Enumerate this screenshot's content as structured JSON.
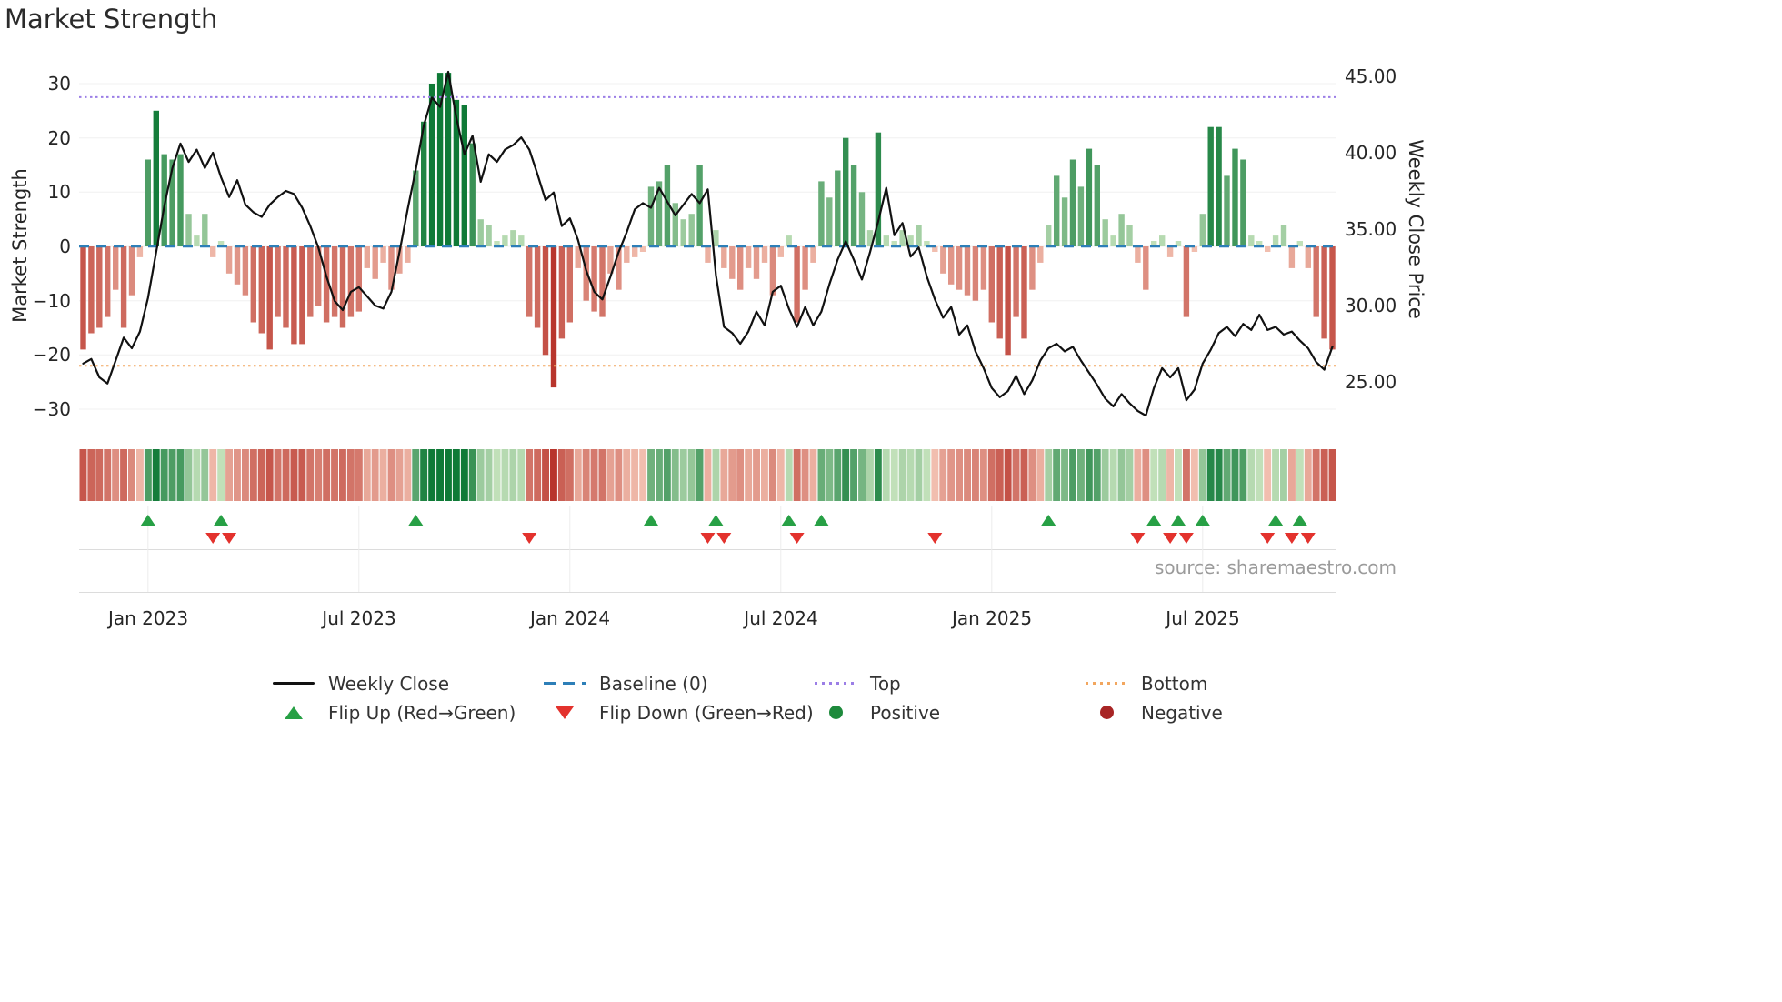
{
  "title": "Market Strength",
  "source": "source: sharemaestro.com",
  "axes": {
    "y_left": {
      "label": "Market Strength",
      "ticks": [
        "30",
        "20",
        "10",
        "0",
        "−10",
        "−20",
        "−30"
      ]
    },
    "y_right": {
      "label": "Weekly Close Price",
      "ticks": [
        "45.00",
        "40.00",
        "35.00",
        "30.00",
        "25.00"
      ]
    },
    "x": {
      "ticks": [
        "Jan 2023",
        "Jul 2023",
        "Jan 2024",
        "Jul 2024",
        "Jan 2025",
        "Jul 2025"
      ]
    }
  },
  "legend": {
    "weekly_close": "Weekly Close",
    "baseline": "Baseline (0)",
    "top": "Top",
    "bottom": "Bottom",
    "flip_up": "Flip Up (Red→Green)",
    "flip_down": "Flip Down (Green→Red)",
    "positive": "Positive",
    "negative": "Negative"
  },
  "colors": {
    "bar_pos_light": "#cfe8c3",
    "bar_pos_dark": "#0f7a37",
    "bar_neg_light": "#f6c9b9",
    "bar_neg_dark": "#b8352c",
    "line": "#111111",
    "baseline": "#2d7fb8",
    "top": "#9b7ee6",
    "bottom": "#f2a65e",
    "flip_up": "#27a045",
    "flip_down": "#e3322d",
    "positive": "#1e8a3c",
    "negative": "#a82525",
    "grid": "#f0f0f0",
    "panel_line": "#dcdcdc"
  },
  "chart_data": {
    "type": "bar",
    "title": "Market Strength",
    "xlabel": "",
    "ylabel_left": "Market Strength",
    "ylabel_right": "Weekly Close Price",
    "x_start_date": "2022-11-07",
    "x_step_days": 7,
    "n_weeks": 155,
    "x_tick_weeks": [
      8,
      34,
      60,
      86,
      112,
      138
    ],
    "x_tick_labels": [
      "Jan 2023",
      "Jul 2023",
      "Jan 2024",
      "Jul 2024",
      "Jan 2025",
      "Jul 2025"
    ],
    "ylim_left": [
      -33.4,
      33.7
    ],
    "ylim_right": [
      22.0,
      45.8
    ],
    "baseline": 0,
    "top_line": 27.5,
    "bottom_line": -22,
    "legend_position": "bottom",
    "grid": true,
    "series": [
      {
        "name": "Market Strength",
        "type": "bar",
        "axis": "left",
        "values": [
          -19,
          -16,
          -15,
          -13,
          -8,
          -15,
          -9,
          -2,
          16,
          25,
          17,
          16,
          17,
          6,
          2,
          6,
          -2,
          1,
          -5,
          -7,
          -9,
          -14,
          -16,
          -19,
          -13,
          -15,
          -18,
          -18,
          -13,
          -11,
          -14,
          -13,
          -15,
          -13,
          -12,
          -4,
          -6,
          -3,
          -8,
          -5,
          -3,
          14,
          23,
          30,
          32,
          32,
          27,
          26,
          19,
          5,
          4,
          1,
          2,
          3,
          2,
          -13,
          -15,
          -20,
          -26,
          -17,
          -14,
          -4,
          -10,
          -12,
          -13,
          -5,
          -8,
          -3,
          -2,
          -1,
          11,
          12,
          15,
          8,
          5,
          6,
          15,
          -3,
          3,
          -4,
          -6,
          -8,
          -4,
          -6,
          -3,
          -9,
          -2,
          2,
          -14,
          -8,
          -3,
          12,
          9,
          14,
          20,
          15,
          10,
          3,
          21,
          2,
          1,
          3,
          2,
          4,
          1,
          -1,
          -5,
          -7,
          -8,
          -9,
          -10,
          -8,
          -14,
          -17,
          -20,
          -13,
          -17,
          -8,
          -3,
          4,
          13,
          9,
          16,
          11,
          18,
          15,
          5,
          2,
          6,
          4,
          -3,
          -8,
          1,
          2,
          -2,
          1,
          -13,
          -1,
          6,
          22,
          22,
          13,
          18,
          16,
          2,
          1,
          -1,
          2,
          4,
          -4,
          1,
          -4,
          -13,
          -17,
          -19
        ]
      },
      {
        "name": "Weekly Close",
        "type": "line",
        "axis": "right",
        "values": [
          26.2,
          26.5,
          25.3,
          24.9,
          26.4,
          27.9,
          27.2,
          28.3,
          30.5,
          33.5,
          36.5,
          39.0,
          40.6,
          39.4,
          40.2,
          39.0,
          40.0,
          38.4,
          37.1,
          38.2,
          36.6,
          36.1,
          35.8,
          36.6,
          37.1,
          37.5,
          37.3,
          36.4,
          35.2,
          33.8,
          31.9,
          30.3,
          29.7,
          30.9,
          31.2,
          30.6,
          30.0,
          29.8,
          30.9,
          33.5,
          36.3,
          38.9,
          41.8,
          43.6,
          43.0,
          45.3,
          42.3,
          39.9,
          41.1,
          38.1,
          39.9,
          39.4,
          40.2,
          40.5,
          41.0,
          40.2,
          38.6,
          36.9,
          37.4,
          35.2,
          35.7,
          34.3,
          32.3,
          30.9,
          30.4,
          31.9,
          33.5,
          34.8,
          36.3,
          36.7,
          36.4,
          37.7,
          36.8,
          35.9,
          36.6,
          37.3,
          36.7,
          37.6,
          32.0,
          28.6,
          28.2,
          27.5,
          28.3,
          29.6,
          28.7,
          30.9,
          31.3,
          29.8,
          28.6,
          29.9,
          28.7,
          29.6,
          31.4,
          33.0,
          34.2,
          33.0,
          31.7,
          33.5,
          35.5,
          37.7,
          34.6,
          35.4,
          33.2,
          33.8,
          31.9,
          30.4,
          29.2,
          29.9,
          28.1,
          28.7,
          27.0,
          25.9,
          24.6,
          24.0,
          24.4,
          25.4,
          24.2,
          25.1,
          26.4,
          27.2,
          27.5,
          27.0,
          27.3,
          26.4,
          25.6,
          24.8,
          23.9,
          23.4,
          24.2,
          23.6,
          23.1,
          22.8,
          24.6,
          25.9,
          25.3,
          25.9,
          23.8,
          24.5,
          26.2,
          27.1,
          28.2,
          28.6,
          28.0,
          28.8,
          28.4,
          29.4,
          28.4,
          28.6,
          28.1,
          28.3,
          27.7,
          27.2,
          26.3,
          25.8,
          27.3
        ]
      }
    ],
    "heatmap": "strip below chart mirrors bar values with same red-green colormap",
    "flip_up_weeks": [
      8,
      17,
      41,
      70,
      78,
      87,
      91,
      119,
      132,
      135,
      138,
      147,
      150
    ],
    "flip_down_weeks": [
      16,
      18,
      55,
      77,
      79,
      88,
      105,
      130,
      134,
      136,
      146,
      149,
      151
    ]
  }
}
